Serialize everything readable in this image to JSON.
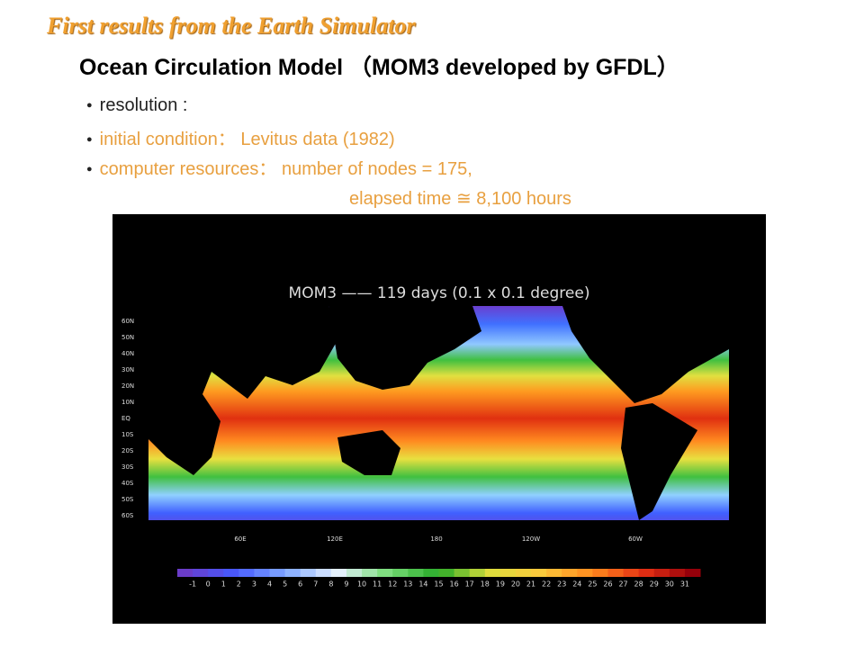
{
  "header": {
    "title": "First results from the Earth Simulator",
    "subtitle": "Ocean Circulation Model （MOM3 developed by GFDL）"
  },
  "bullets": [
    "resolution :",
    "initial condition： Levitus  data (1982)",
    "computer resources：    number of nodes = 175,"
  ],
  "bullet_continuation": "elapsed time ≅  8,100 hours",
  "figure": {
    "title": "MOM3 —— 119 days (0.1 x 0.1 degree)",
    "lat_labels": [
      "60N",
      "50N",
      "40N",
      "30N",
      "20N",
      "10N",
      "EQ",
      "10S",
      "20S",
      "30S",
      "40S",
      "50S",
      "60S"
    ],
    "lon_labels": [
      "60E",
      "120E",
      "180",
      "120W",
      "60W"
    ],
    "colorbar_labels": [
      "-1",
      "0",
      "1",
      "2",
      "3",
      "4",
      "5",
      "6",
      "7",
      "8",
      "9",
      "10",
      "11",
      "12",
      "13",
      "14",
      "15",
      "16",
      "17",
      "18",
      "19",
      "20",
      "21",
      "22",
      "23",
      "24",
      "25",
      "26",
      "27",
      "28",
      "29",
      "30",
      "31"
    ]
  }
}
